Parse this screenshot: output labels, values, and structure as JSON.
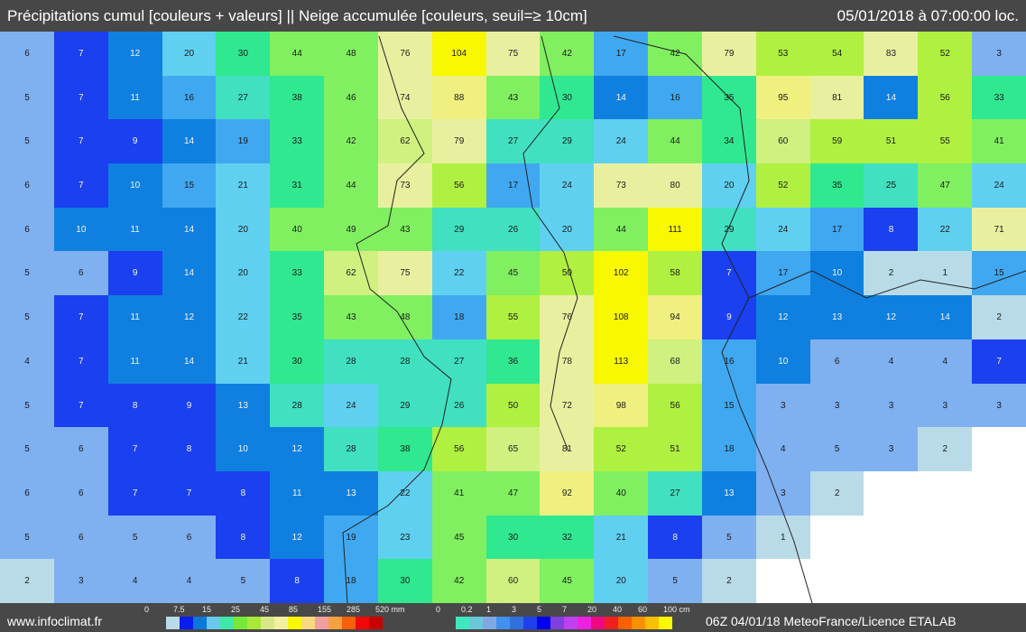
{
  "header": {
    "title": "Précipitations cumul [couleurs + valeurs] || Neige accumulée [couleurs, seuil=≥ 10cm]",
    "datetime": "05/01/2018 à 07:00:00 loc."
  },
  "footer": {
    "site": "www.infoclimat.fr",
    "credit": "06Z 04/01/18 MeteoFrance/Licence ETALAB",
    "rain_legend": {
      "labels": [
        "0",
        "7.5",
        "15",
        "25",
        "45",
        "85",
        "155",
        "285",
        "520 mm"
      ],
      "colors": [
        "#b9dbe8",
        "#0a1cf0",
        "#0a78d8",
        "#6ac8ec",
        "#3ee8a8",
        "#78e838",
        "#a8e838",
        "#d8e888",
        "#f0f0a0",
        "#f8f800",
        "#f8d880",
        "#f0a0a0",
        "#f8a040",
        "#f86008",
        "#f00808",
        "#c80000"
      ]
    },
    "snow_legend": {
      "labels": [
        "0",
        "0.2",
        "1",
        "3",
        "5",
        "7",
        "20",
        "40",
        "60",
        "100 cm"
      ],
      "colors": [
        "#40e8c0",
        "#68c8d8",
        "#80a8e0",
        "#4090f0",
        "#3070e0",
        "#2040f0",
        "#0000f0",
        "#8040e0",
        "#c040f0",
        "#f020e0",
        "#f00880",
        "#f02020",
        "#f86000",
        "#f89000",
        "#f8c000",
        "#f8f800"
      ]
    }
  },
  "map": {
    "values_mm": [
      [
        6,
        7,
        12,
        20,
        30,
        44,
        48,
        76,
        104,
        75,
        42,
        17,
        42,
        79,
        53,
        54,
        83,
        52,
        3
      ],
      [
        5,
        7,
        11,
        16,
        27,
        38,
        46,
        74,
        88,
        43,
        30,
        14,
        16,
        35,
        95,
        81,
        14,
        56,
        33
      ],
      [
        5,
        7,
        9,
        14,
        19,
        33,
        42,
        62,
        79,
        27,
        29,
        24,
        44,
        34,
        60,
        59,
        51,
        55,
        41
      ],
      [
        6,
        7,
        10,
        15,
        21,
        31,
        44,
        73,
        56,
        17,
        24,
        73,
        80,
        20,
        52,
        35,
        25,
        47,
        24
      ],
      [
        6,
        10,
        11,
        14,
        20,
        40,
        49,
        43,
        29,
        26,
        20,
        44,
        111,
        29,
        24,
        17,
        8,
        22,
        71
      ],
      [
        5,
        6,
        9,
        14,
        20,
        33,
        62,
        75,
        22,
        45,
        50,
        102,
        58,
        7,
        17,
        10,
        2,
        1,
        15
      ],
      [
        5,
        7,
        11,
        12,
        22,
        35,
        43,
        48,
        18,
        55,
        76,
        108,
        94,
        9,
        12,
        13,
        12,
        14,
        2
      ],
      [
        4,
        7,
        11,
        14,
        21,
        30,
        28,
        28,
        27,
        36,
        78,
        113,
        68,
        16,
        10,
        6,
        4,
        4,
        7
      ],
      [
        5,
        7,
        8,
        9,
        13,
        28,
        24,
        29,
        26,
        50,
        72,
        98,
        56,
        15,
        3,
        3,
        3,
        3,
        3
      ],
      [
        5,
        6,
        7,
        8,
        10,
        12,
        28,
        38,
        56,
        65,
        81,
        52,
        51,
        18,
        4,
        5,
        3,
        2,
        null
      ],
      [
        6,
        6,
        7,
        7,
        8,
        11,
        13,
        22,
        41,
        47,
        92,
        40,
        27,
        13,
        3,
        2,
        null,
        null,
        null
      ],
      [
        5,
        6,
        5,
        6,
        8,
        12,
        19,
        23,
        45,
        30,
        32,
        21,
        8,
        5,
        1,
        null,
        null,
        null,
        null
      ],
      [
        2,
        3,
        4,
        4,
        5,
        8,
        18,
        30,
        42,
        60,
        45,
        20,
        5,
        2,
        null,
        null,
        null,
        null,
        null
      ]
    ]
  }
}
